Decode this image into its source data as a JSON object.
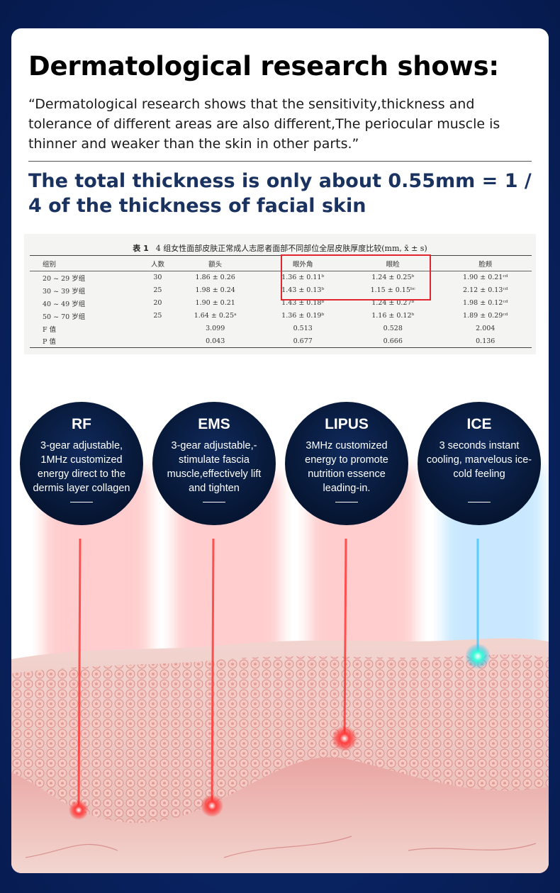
{
  "heading": "Dermatological research shows:",
  "quote": "“Dermatological research shows that the sensitivity,thickness and tolerance of different areas are also different,The periocular muscle is thinner and weaker than the skin in other parts.”",
  "subheading": "The total thickness is only about 0.55mm = 1 / 4 of the thickness of facial skin",
  "table": {
    "label": "表 1",
    "caption": "4 组女性面部皮肤正常成人志愿者面部不同部位全层皮肤厚度比较(mm, x̄ ± s)",
    "headers": [
      "组别",
      "人数",
      "额头",
      "眼外角",
      "眼睑",
      "脸颊"
    ],
    "rows": [
      [
        "20 ~ 29 岁组",
        "30",
        "1.86 ± 0.26",
        "1.36 ± 0.11ᵇ",
        "1.24 ± 0.25ᵇ",
        "1.90 ± 0.21ᶜᵈ"
      ],
      [
        "30 ~ 39 岁组",
        "25",
        "1.98 ± 0.24",
        "1.43 ± 0.13ᵇ",
        "1.15 ± 0.15ᵇᶜ",
        "2.12 ± 0.13ᶜᵈ"
      ],
      [
        "40 ~ 49 岁组",
        "20",
        "1.90 ± 0.21",
        "1.43 ± 0.18ᵇ",
        "1.24 ± 0.27ᵇ",
        "1.98 ± 0.12ᶜᵈ"
      ],
      [
        "50 ~ 70 岁组",
        "25",
        "1.64 ± 0.25ᵃ",
        "1.36 ± 0.19ᵇ",
        "1.16 ± 0.12ᵇ",
        "1.89 ± 0.29ᶜᵈ"
      ],
      [
        "F 值",
        "",
        "3.099",
        "0.513",
        "0.528",
        "2.004"
      ],
      [
        "P 值",
        "",
        "0.043",
        "0.677",
        "0.666",
        "0.136"
      ]
    ]
  },
  "features": [
    {
      "title": "RF",
      "desc": "3-gear adjustable, 1MHz customized energy direct to the dermis layer collagen",
      "beam_color": "#ff2a2a"
    },
    {
      "title": "EMS",
      "desc": "3-gear adjustable,-stimulate fascia muscle,effectively lift and tighten",
      "beam_color": "#ff2a2a"
    },
    {
      "title": "LIPUS",
      "desc": "3MHz customized energy to promote nutrition essence leading-in.",
      "beam_color": "#ff2a2a"
    },
    {
      "title": "ICE",
      "desc": "3 seconds instant cooling, marvelous ice-cold feeling",
      "beam_color": "#2aa8ff"
    }
  ],
  "colors": {
    "background": "#0a2566",
    "heading_blue": "#1a3260",
    "highlight_red": "#e2262d",
    "card": "#ffffff"
  }
}
